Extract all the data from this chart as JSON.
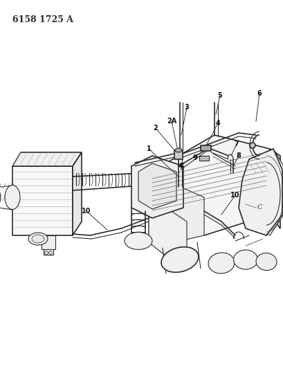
{
  "title_text": "6158 1725 A",
  "bg_color": "#ffffff",
  "line_color": "#2a2a2a",
  "label_color": "#111111",
  "label_fontsize": 7.0,
  "fig_width": 4.1,
  "fig_height": 5.33,
  "dpi": 100
}
